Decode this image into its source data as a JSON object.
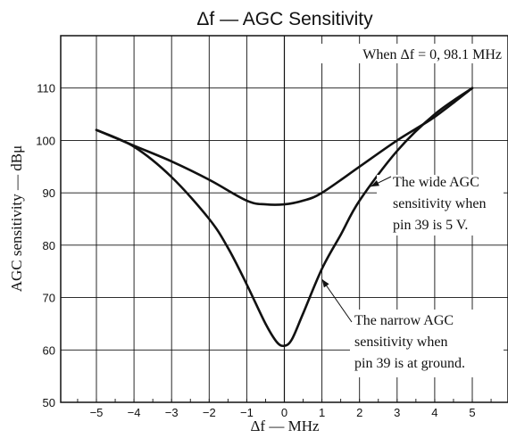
{
  "chart_data": {
    "type": "line",
    "title": "Δf  —  AGC Sensitivity",
    "xlabel": "Δf  —  MHz",
    "ylabel": "AGC sensitivity — dBμ",
    "xlim": [
      -5.95,
      5.95
    ],
    "ylim": [
      50,
      120
    ],
    "x_ticks": [
      -5,
      -4,
      -3,
      -2,
      -1,
      0,
      1,
      2,
      3,
      4,
      5
    ],
    "y_ticks": [
      50,
      60,
      70,
      80,
      90,
      100,
      110
    ],
    "grid": true,
    "note": "When Δf = 0, 98.1 MHz",
    "series": [
      {
        "x": [
          -5,
          -4,
          -3,
          -2,
          -1,
          -0.5,
          0,
          0.5,
          1,
          2,
          3,
          4,
          5
        ],
        "y": [
          102,
          99,
          96,
          92.5,
          88.5,
          87.8,
          87.8,
          88.5,
          90,
          95,
          100,
          104.5,
          110
        ]
      },
      {
        "x": [
          -5,
          -4,
          -3,
          -2,
          -1.5,
          -1,
          -0.5,
          -0.2,
          0,
          0.2,
          0.5,
          1,
          1.5,
          2,
          3,
          4,
          5
        ],
        "y": [
          102,
          98.8,
          93,
          85,
          79.5,
          72.5,
          65,
          61.5,
          60.8,
          62,
          67,
          75.5,
          82,
          88.5,
          98,
          105,
          110
        ]
      }
    ],
    "annotations": [
      {
        "lines": [
          "The wide AGC",
          "sensitivity when",
          "pin 39 is 5 V."
        ],
        "x": 2.3,
        "y": 91.2
      },
      {
        "lines": [
          "The narrow AGC",
          "sensitivity when",
          "pin 39 is at ground."
        ],
        "x": 1.0,
        "y": 73.5
      }
    ]
  }
}
